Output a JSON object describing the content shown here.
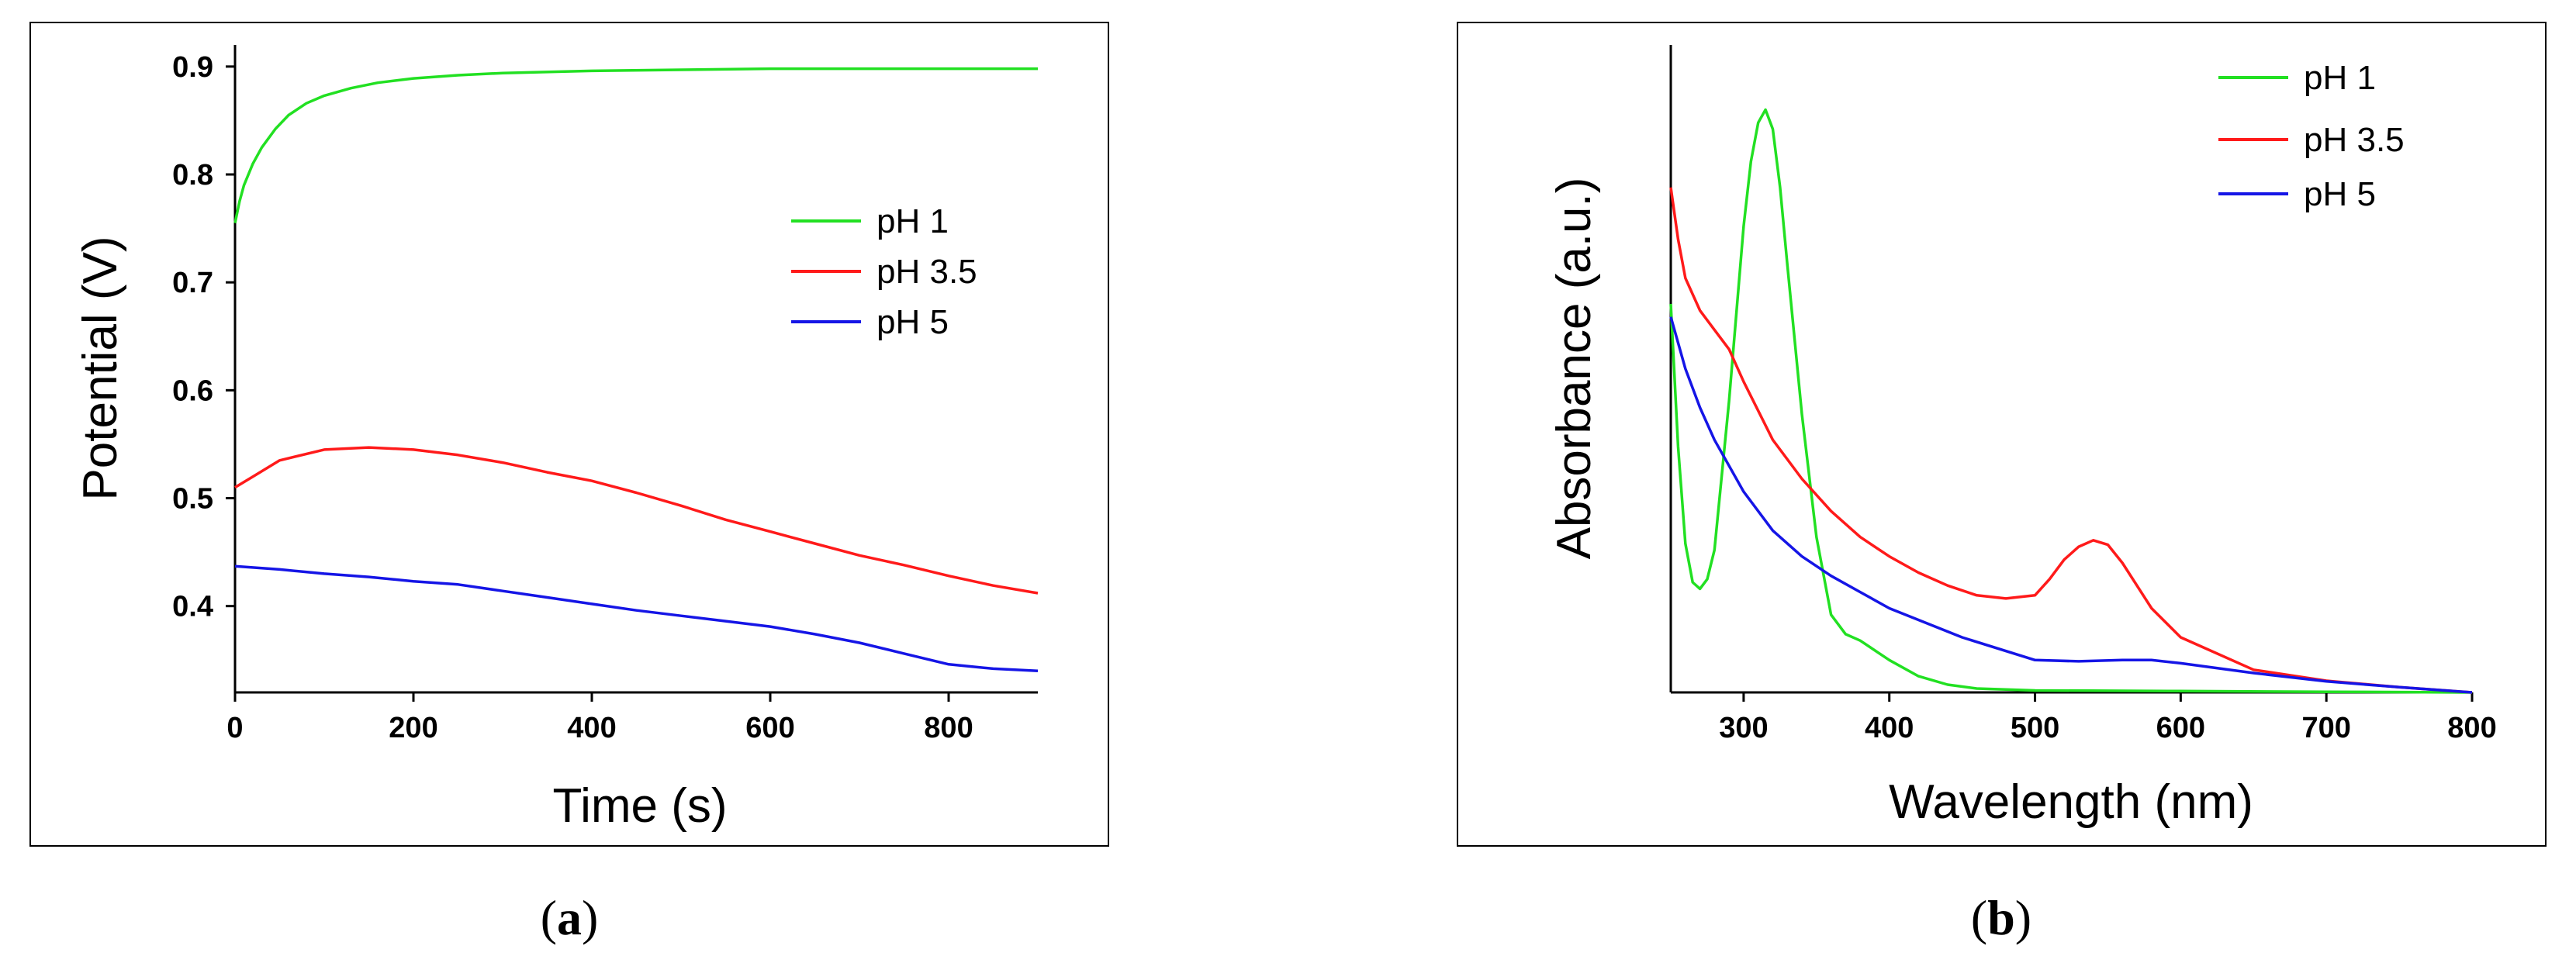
{
  "panels": [
    {
      "open": "(",
      "letter": "a",
      "close": ")"
    },
    {
      "open": "(",
      "letter": "b",
      "close": ")"
    }
  ],
  "colors": {
    "pH 1": "#22e022",
    "pH 3.5": "#ff1a1a",
    "pH 5": "#1515e6"
  },
  "chart_data": [
    {
      "type": "line",
      "title": "",
      "xlabel": "Time (s)",
      "ylabel": "Potential (V)",
      "xlim": [
        0,
        900
      ],
      "ylim": [
        0.32,
        0.92
      ],
      "xticks": [
        0,
        200,
        400,
        600,
        800
      ],
      "yticks": [
        0.4,
        0.5,
        0.6,
        0.7,
        0.8,
        0.9
      ],
      "ytick_labels": [
        "0.4",
        "0.5",
        "0.6",
        "0.7",
        "0.8",
        "0.9"
      ],
      "legend": "center-right",
      "series": [
        {
          "name": "pH 1",
          "color": "#22e022",
          "x": [
            0,
            5,
            10,
            20,
            30,
            45,
            60,
            80,
            100,
            130,
            160,
            200,
            250,
            300,
            400,
            500,
            600,
            700,
            800,
            900
          ],
          "y": [
            0.755,
            0.775,
            0.79,
            0.81,
            0.825,
            0.842,
            0.855,
            0.866,
            0.873,
            0.88,
            0.885,
            0.889,
            0.892,
            0.894,
            0.896,
            0.897,
            0.898,
            0.898,
            0.898,
            0.898
          ]
        },
        {
          "name": "pH 3.5",
          "color": "#ff1a1a",
          "x": [
            0,
            20,
            50,
            100,
            150,
            200,
            250,
            300,
            350,
            400,
            450,
            500,
            550,
            600,
            650,
            700,
            750,
            800,
            850,
            900
          ],
          "y": [
            0.51,
            0.52,
            0.535,
            0.545,
            0.547,
            0.545,
            0.54,
            0.533,
            0.524,
            0.516,
            0.505,
            0.493,
            0.48,
            0.469,
            0.458,
            0.447,
            0.438,
            0.428,
            0.419,
            0.412
          ]
        },
        {
          "name": "pH 5",
          "color": "#1515e6",
          "x": [
            0,
            50,
            100,
            150,
            200,
            250,
            300,
            350,
            400,
            450,
            500,
            550,
            600,
            650,
            700,
            750,
            800,
            850,
            900
          ],
          "y": [
            0.437,
            0.434,
            0.43,
            0.427,
            0.423,
            0.42,
            0.414,
            0.408,
            0.402,
            0.396,
            0.391,
            0.386,
            0.381,
            0.374,
            0.366,
            0.356,
            0.346,
            0.342,
            0.34
          ]
        }
      ]
    },
    {
      "type": "line",
      "title": "",
      "xlabel": "Wavelength (nm)",
      "ylabel": "Absorbance (a.u.)",
      "xlim": [
        250,
        800
      ],
      "ylim": [
        0,
        1.0
      ],
      "xticks": [
        300,
        400,
        500,
        600,
        700,
        800
      ],
      "yticks": [],
      "legend": "top-right",
      "series": [
        {
          "name": "pH 1",
          "color": "#22e022",
          "x": [
            250,
            255,
            260,
            265,
            270,
            275,
            280,
            290,
            300,
            305,
            310,
            315,
            320,
            325,
            330,
            340,
            350,
            360,
            370,
            380,
            400,
            420,
            440,
            460,
            500,
            600,
            700,
            800
          ],
          "y": [
            0.6,
            0.38,
            0.23,
            0.17,
            0.16,
            0.175,
            0.22,
            0.45,
            0.72,
            0.82,
            0.88,
            0.9,
            0.87,
            0.78,
            0.66,
            0.43,
            0.24,
            0.12,
            0.09,
            0.08,
            0.05,
            0.025,
            0.012,
            0.006,
            0.003,
            0.002,
            0.001,
            0.0
          ]
        },
        {
          "name": "pH 3.5",
          "color": "#ff1a1a",
          "x": [
            250,
            255,
            260,
            270,
            280,
            290,
            300,
            320,
            340,
            360,
            380,
            400,
            420,
            440,
            460,
            480,
            500,
            510,
            520,
            530,
            540,
            550,
            560,
            580,
            600,
            650,
            700,
            750,
            800
          ],
          "y": [
            0.78,
            0.7,
            0.64,
            0.59,
            0.56,
            0.53,
            0.48,
            0.39,
            0.33,
            0.28,
            0.24,
            0.21,
            0.185,
            0.165,
            0.15,
            0.145,
            0.15,
            0.175,
            0.205,
            0.225,
            0.235,
            0.228,
            0.2,
            0.13,
            0.085,
            0.035,
            0.018,
            0.008,
            0.0
          ]
        },
        {
          "name": "pH 5",
          "color": "#1515e6",
          "x": [
            250,
            260,
            270,
            280,
            300,
            320,
            340,
            360,
            380,
            400,
            450,
            500,
            530,
            560,
            580,
            600,
            650,
            700,
            750,
            800
          ],
          "y": [
            0.58,
            0.5,
            0.44,
            0.39,
            0.31,
            0.25,
            0.21,
            0.18,
            0.155,
            0.13,
            0.085,
            0.05,
            0.048,
            0.05,
            0.05,
            0.045,
            0.03,
            0.017,
            0.008,
            0.0
          ]
        }
      ]
    }
  ]
}
